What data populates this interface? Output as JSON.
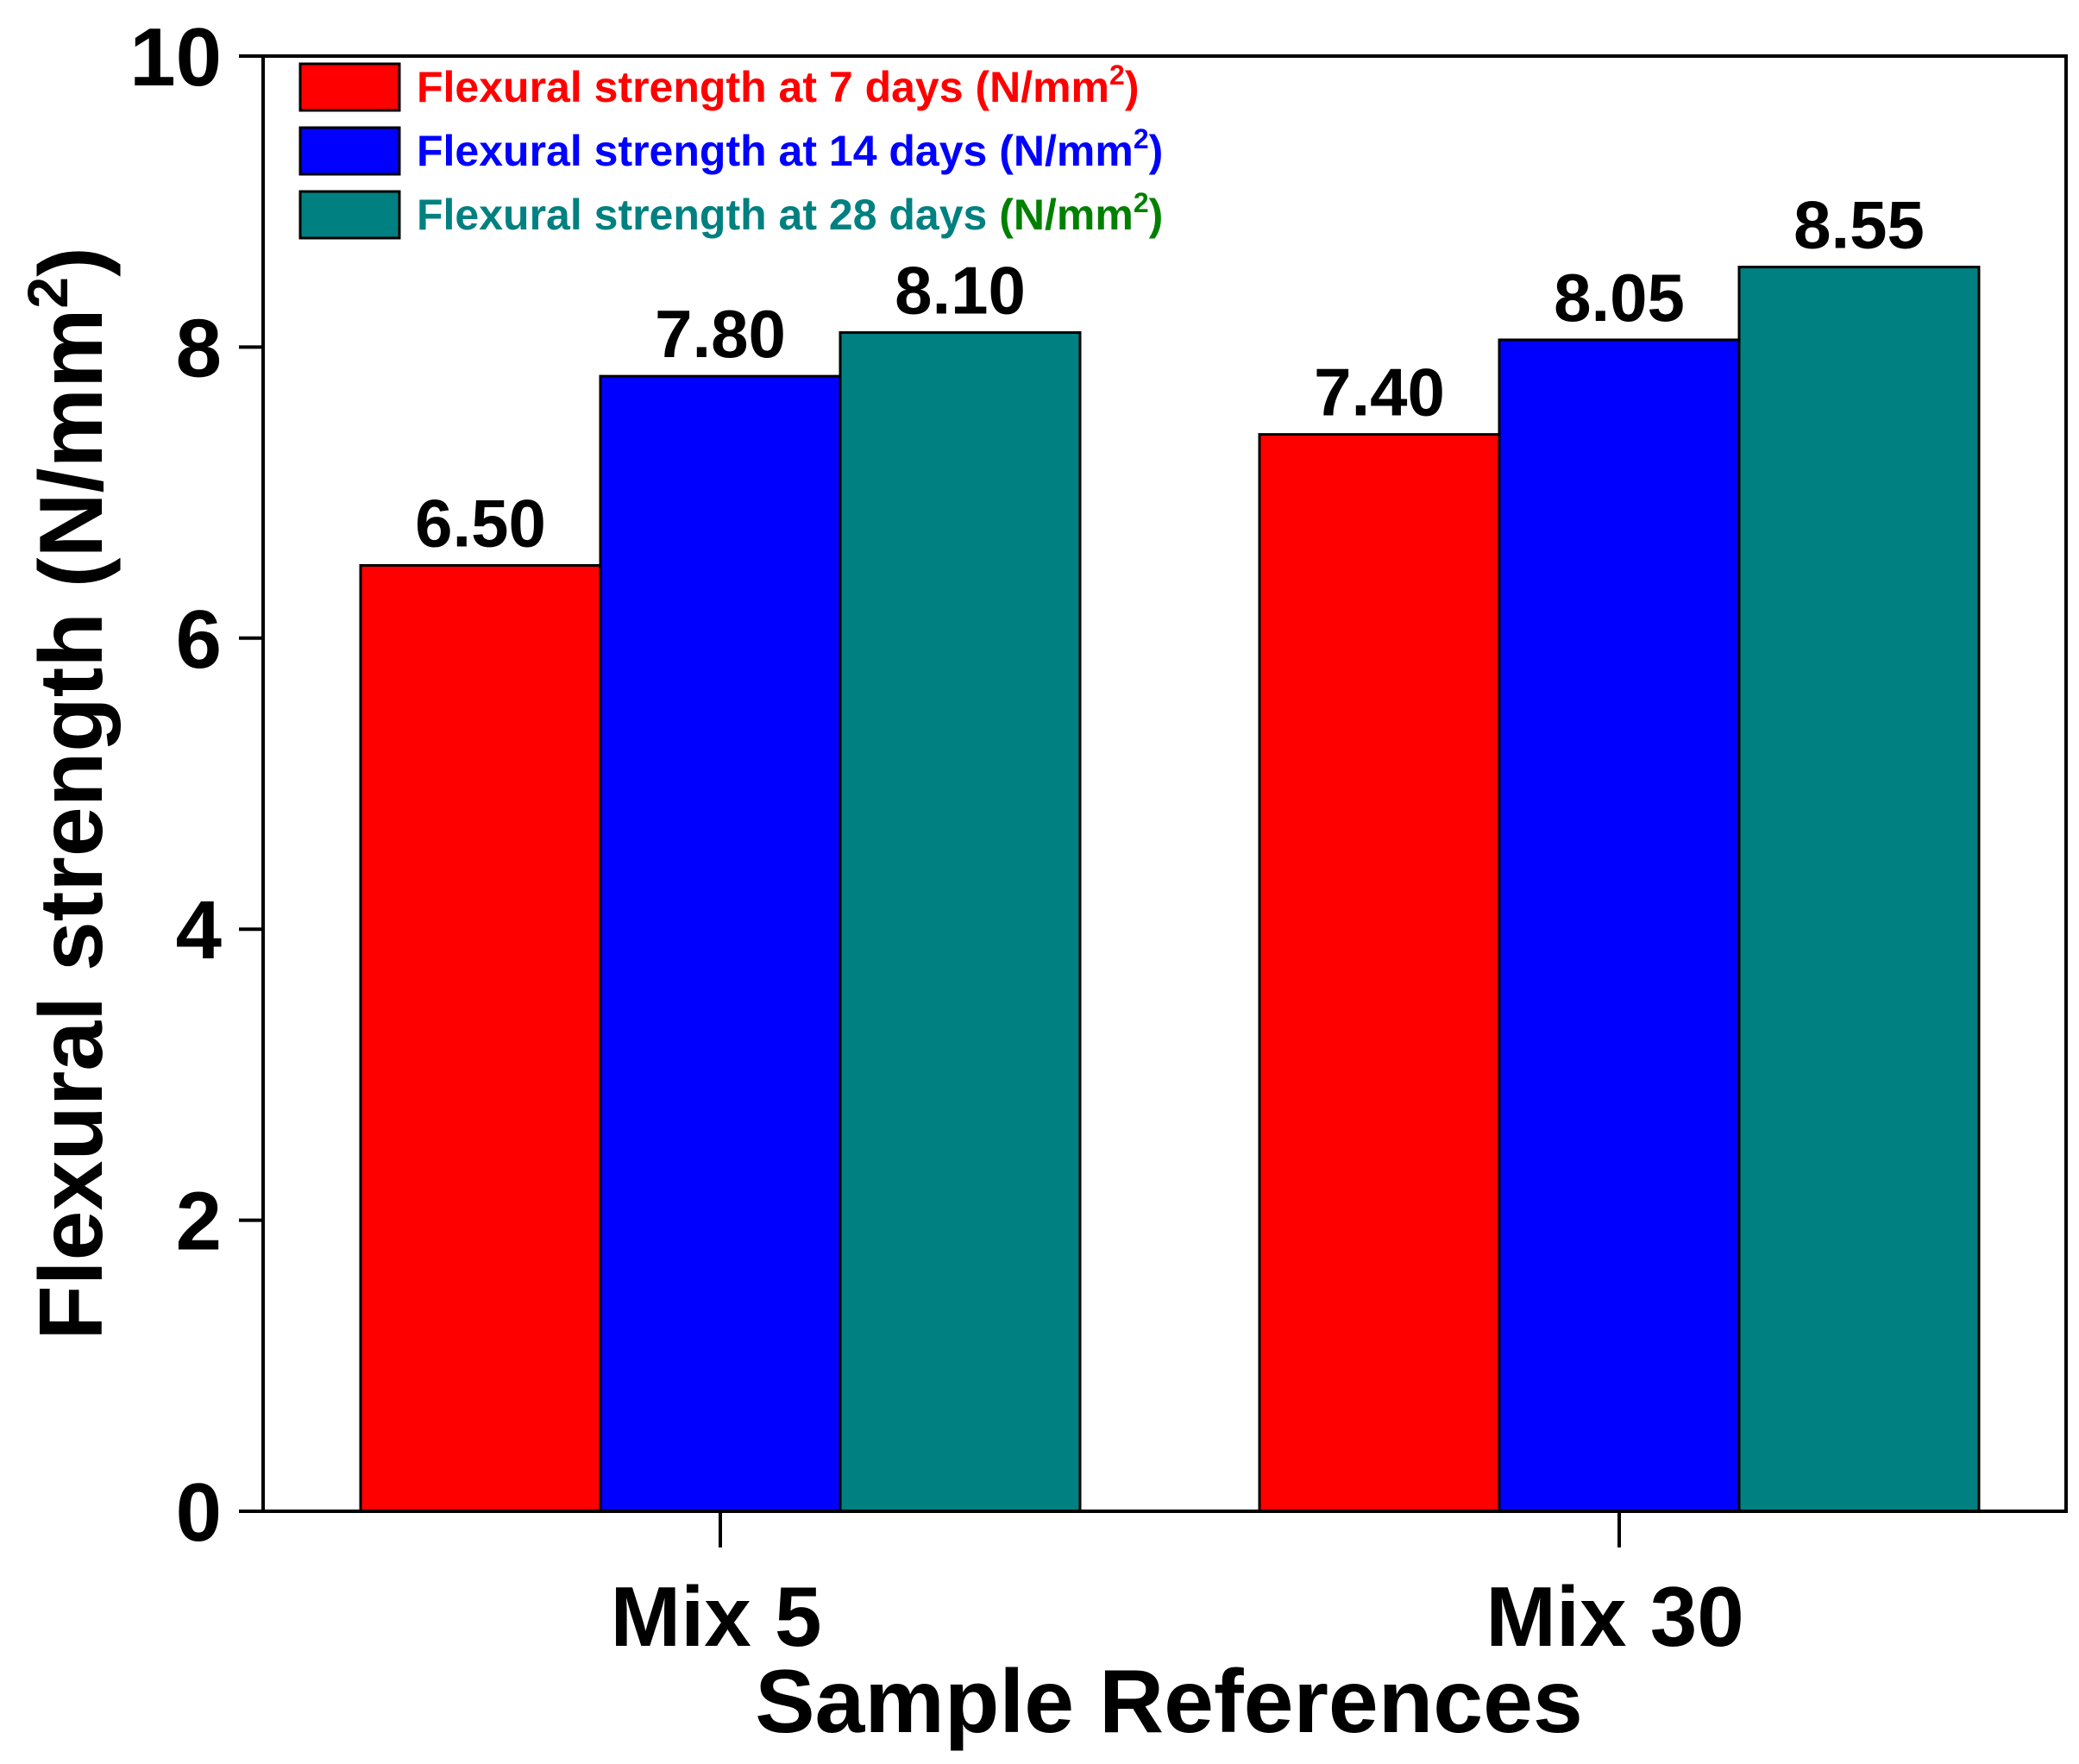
{
  "chart_data": {
    "type": "bar",
    "title": "",
    "xlabel": "Sample References",
    "ylabel_main": "Flexural strength (N/mm",
    "ylabel_sup": "2",
    "ylabel_close": ")",
    "ylim": [
      0,
      10
    ],
    "yticks": [
      "0",
      "2",
      "4",
      "6",
      "8",
      "10"
    ],
    "categories": [
      "Mix 5",
      "Mix 30"
    ],
    "series": [
      {
        "name": "Flexural strength at 7 days",
        "unit_main": "(N/mm",
        "unit_sup": "2",
        "unit_close": ")",
        "color": "#ff0000",
        "text_color": "#ff0000",
        "unit_color": "#ff0000",
        "values": [
          6.5,
          7.4
        ],
        "labels": [
          "6.50",
          "7.40"
        ]
      },
      {
        "name": "Flexural strength at 14 days",
        "unit_main": "(N/mm",
        "unit_sup": "2",
        "unit_close": ")",
        "color": "#0000ff",
        "text_color": "#0000ff",
        "unit_color": "#0000ff",
        "values": [
          7.8,
          8.05
        ],
        "labels": [
          "7.80",
          "8.05"
        ]
      },
      {
        "name": "Flexural strength at 28 days",
        "unit_main": "(N/mm",
        "unit_sup": "2",
        "unit_close": ")",
        "color": "#008080",
        "text_color": "#008080",
        "unit_color": "#008000",
        "values": [
          8.1,
          8.55
        ],
        "labels": [
          "8.10",
          "8.55"
        ]
      }
    ],
    "legend_position": "top-left",
    "grid": false
  }
}
